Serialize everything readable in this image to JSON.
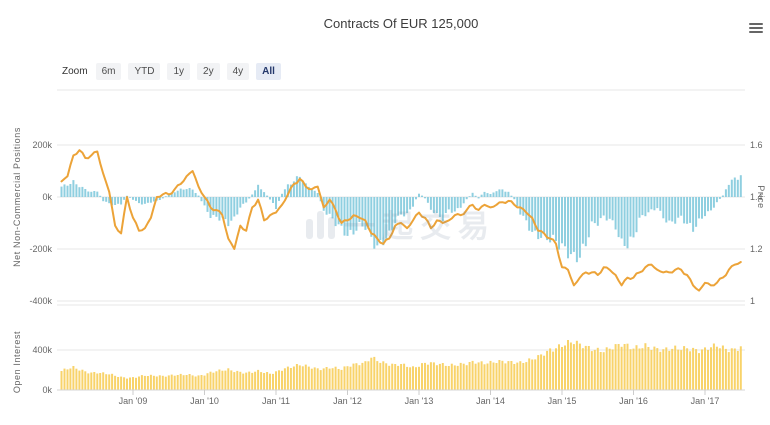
{
  "header": {
    "title": "Contracts Of EUR 125,000"
  },
  "range_selector": {
    "zoom_label": "Zoom",
    "buttons": [
      {
        "label": "6m",
        "selected": false
      },
      {
        "label": "YTD",
        "selected": false
      },
      {
        "label": "1y",
        "selected": false
      },
      {
        "label": "2y",
        "selected": false
      },
      {
        "label": "4y",
        "selected": false
      },
      {
        "label": "All",
        "selected": true
      }
    ]
  },
  "watermark": {
    "icon": "bar-chart-watermark-icon",
    "text": "一起交易"
  },
  "chart_data": {
    "type": "mixed",
    "title": "Contracts Of EUR 125,000",
    "x_start": "2008-01",
    "x_end": "2017-07",
    "x_interval": "monthly",
    "x_tick_labels": [
      "Jan '09",
      "Jan '10",
      "Jan '11",
      "Jan '12",
      "Jan '13",
      "Jan '14",
      "Jan '15",
      "Jan '16",
      "Jan '17"
    ],
    "grid": true,
    "legend": "none",
    "panels": [
      {
        "name": "net-positions-and-price",
        "left_axis": {
          "title": "Net Non-Commercial Positions",
          "ticks": [
            "200k",
            "0k",
            "-200k",
            "-400k"
          ],
          "range_thousands": [
            -400,
            400
          ]
        },
        "right_axis": {
          "title": "Price",
          "ticks": [
            "1.6",
            "1.4",
            "1.2",
            "1"
          ],
          "range": [
            1.0,
            1.8
          ]
        },
        "series": [
          {
            "name": "Net Non-Commercial Positions",
            "type": "column",
            "axis": "left",
            "color": "#8FCFE0",
            "unit": "thousand contracts",
            "values": [
              40,
              45,
              55,
              40,
              30,
              20,
              25,
              -15,
              -25,
              -30,
              -25,
              5,
              -10,
              -25,
              -30,
              -20,
              -15,
              -5,
              10,
              20,
              30,
              35,
              30,
              5,
              -35,
              -70,
              -75,
              -85,
              -105,
              -90,
              -40,
              -20,
              10,
              40,
              20,
              -10,
              -45,
              15,
              45,
              60,
              77,
              45,
              30,
              15,
              -55,
              -75,
              -100,
              -115,
              -140,
              -130,
              -110,
              -120,
              -170,
              -201,
              -165,
              -138,
              -90,
              -65,
              -70,
              -35,
              15,
              -5,
              -45,
              -65,
              -80,
              -50,
              -60,
              -40,
              -10,
              15,
              -5,
              20,
              10,
              25,
              30,
              20,
              -10,
              -60,
              -90,
              -130,
              -145,
              -160,
              -170,
              -180,
              -195,
              -205,
              -221,
              -215,
              -180,
              -110,
              -105,
              -80,
              -85,
              -110,
              -170,
              -175,
              -160,
              -90,
              -70,
              -55,
              -40,
              -75,
              -95,
              -90,
              -80,
              -110,
              -130,
              -95,
              -65,
              -50,
              -20,
              5,
              55,
              75,
              85
            ]
          },
          {
            "name": "Price",
            "type": "line",
            "axis": "right",
            "color": "#ECA338",
            "unit": "EUR/USD",
            "values": [
              1.46,
              1.48,
              1.56,
              1.58,
              1.55,
              1.56,
              1.575,
              1.49,
              1.42,
              1.29,
              1.26,
              1.4,
              1.32,
              1.27,
              1.28,
              1.32,
              1.4,
              1.41,
              1.41,
              1.43,
              1.45,
              1.48,
              1.5,
              1.44,
              1.4,
              1.36,
              1.35,
              1.33,
              1.24,
              1.2,
              1.29,
              1.27,
              1.36,
              1.39,
              1.31,
              1.33,
              1.34,
              1.37,
              1.41,
              1.45,
              1.47,
              1.44,
              1.43,
              1.44,
              1.36,
              1.39,
              1.35,
              1.3,
              1.31,
              1.33,
              1.32,
              1.31,
              1.26,
              1.24,
              1.22,
              1.24,
              1.29,
              1.3,
              1.28,
              1.31,
              1.34,
              1.32,
              1.28,
              1.31,
              1.3,
              1.31,
              1.33,
              1.33,
              1.35,
              1.37,
              1.35,
              1.37,
              1.36,
              1.37,
              1.38,
              1.385,
              1.37,
              1.36,
              1.34,
              1.32,
              1.27,
              1.26,
              1.24,
              1.22,
              1.13,
              1.12,
              1.06,
              1.09,
              1.11,
              1.11,
              1.1,
              1.13,
              1.12,
              1.1,
              1.06,
              1.09,
              1.09,
              1.11,
              1.13,
              1.14,
              1.12,
              1.11,
              1.11,
              1.12,
              1.12,
              1.1,
              1.06,
              1.04,
              1.07,
              1.06,
              1.07,
              1.09,
              1.12,
              1.14,
              1.15
            ]
          }
        ]
      },
      {
        "name": "open-interest",
        "left_axis": {
          "title": "Open Interest",
          "ticks": [
            "400k",
            "0k"
          ],
          "range_thousands": [
            0,
            500
          ]
        },
        "series": [
          {
            "name": "Open Interest",
            "type": "column",
            "axis": "left",
            "color": "#F8D36A",
            "unit": "thousand contracts",
            "values": [
              190,
              210,
              220,
              200,
              185,
              175,
              180,
              170,
              160,
              140,
              125,
              120,
              125,
              140,
              150,
              145,
              140,
              135,
              140,
              150,
              155,
              160,
              150,
              140,
              150,
              170,
              185,
              200,
              210,
              195,
              180,
              170,
              175,
              185,
              175,
              165,
              185,
              210,
              225,
              235,
              245,
              235,
              225,
              215,
              220,
              230,
              220,
              205,
              230,
              250,
              265,
              280,
              340,
              300,
              270,
              250,
              245,
              255,
              245,
              230,
              250,
              270,
              265,
              255,
              250,
              245,
              255,
              265,
              270,
              280,
              270,
              260,
              270,
              285,
              295,
              290,
              280,
              270,
              280,
              300,
              330,
              370,
              410,
              430,
              450,
              465,
              470,
              445,
              430,
              420,
              410,
              400,
              415,
              430,
              445,
              435,
              420,
              440,
              455,
              430,
              405,
              390,
              400,
              415,
              420,
              430,
              415,
              395,
              400,
              420,
              435,
              420,
              410,
              415,
              440
            ]
          }
        ]
      }
    ]
  }
}
